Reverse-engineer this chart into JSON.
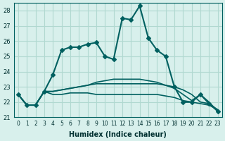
{
  "xlabel": "Humidex (Indice chaleur)",
  "ylabel": "",
  "xlim": [
    -0.5,
    23.5
  ],
  "ylim": [
    21,
    28.5
  ],
  "yticks": [
    21,
    22,
    23,
    24,
    25,
    26,
    27,
    28
  ],
  "xticks": [
    0,
    1,
    2,
    3,
    4,
    5,
    6,
    7,
    8,
    9,
    10,
    11,
    12,
    13,
    14,
    15,
    16,
    17,
    18,
    19,
    20,
    21,
    22,
    23
  ],
  "background_color": "#d8f0ec",
  "grid_color": "#b0d8d0",
  "line_color": "#006060",
  "series": [
    {
      "x": [
        0,
        1,
        2,
        3,
        4,
        5,
        6,
        7,
        8,
        9,
        10,
        11,
        12,
        13,
        14,
        15,
        16,
        17,
        18,
        19,
        20,
        21,
        22,
        23
      ],
      "y": [
        22.5,
        21.8,
        21.8,
        22.7,
        23.8,
        25.4,
        25.6,
        25.6,
        25.8,
        25.9,
        25.0,
        24.8,
        27.5,
        27.4,
        28.3,
        26.2,
        25.4,
        25.0,
        23.0,
        22.0,
        22.0,
        22.5,
        21.9,
        21.4
      ],
      "marker": "D",
      "markersize": 3,
      "linewidth": 1.5
    },
    {
      "x": [
        0,
        1,
        2,
        3,
        4,
        5,
        6,
        7,
        8,
        9,
        10,
        11,
        12,
        13,
        14,
        15,
        16,
        17,
        18,
        19,
        20,
        21,
        22,
        23
      ],
      "y": [
        22.5,
        21.8,
        21.8,
        22.7,
        22.5,
        22.5,
        22.6,
        22.6,
        22.6,
        22.5,
        22.5,
        22.5,
        22.5,
        22.5,
        22.5,
        22.5,
        22.5,
        22.4,
        22.3,
        22.1,
        22.0,
        21.9,
        21.8,
        21.5
      ],
      "marker": null,
      "markersize": 0,
      "linewidth": 1.2
    },
    {
      "x": [
        0,
        1,
        2,
        3,
        4,
        5,
        6,
        7,
        8,
        9,
        10,
        11,
        12,
        13,
        14,
        15,
        16,
        17,
        18,
        19,
        20,
        21,
        22,
        23
      ],
      "y": [
        22.5,
        21.8,
        21.8,
        22.7,
        22.7,
        22.8,
        22.9,
        23.0,
        23.1,
        23.2,
        23.2,
        23.2,
        23.2,
        23.2,
        23.2,
        23.2,
        23.2,
        23.1,
        23.0,
        22.8,
        22.5,
        22.0,
        21.9,
        21.5
      ],
      "marker": null,
      "markersize": 0,
      "linewidth": 1.2
    },
    {
      "x": [
        0,
        1,
        2,
        3,
        4,
        5,
        6,
        7,
        8,
        9,
        10,
        11,
        12,
        13,
        14,
        15,
        16,
        17,
        18,
        19,
        20,
        21,
        22,
        23
      ],
      "y": [
        22.5,
        21.8,
        21.8,
        22.7,
        22.7,
        22.8,
        22.9,
        23.0,
        23.1,
        23.3,
        23.4,
        23.5,
        23.5,
        23.5,
        23.5,
        23.4,
        23.3,
        23.1,
        22.9,
        22.5,
        22.1,
        22.5,
        22.0,
        21.4
      ],
      "marker": null,
      "markersize": 0,
      "linewidth": 1.2
    }
  ]
}
